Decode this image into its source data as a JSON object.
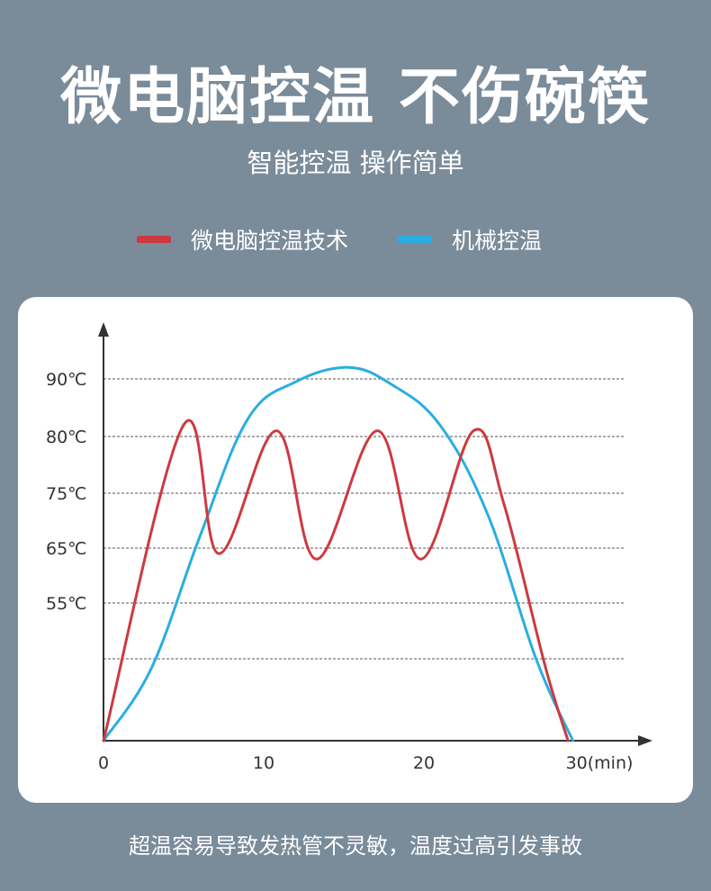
{
  "header": {
    "title": "微电脑控温 不伤碗筷",
    "subtitle": "智能控温 操作简单"
  },
  "footer": {
    "text": "超温容易导致发热管不灵敏，温度过高引发事故"
  },
  "colors": {
    "background": "#7a8b9a",
    "card": "#ffffff",
    "series_red": "#cc3a3f",
    "series_blue": "#2aaee0"
  },
  "chart_data": {
    "type": "line",
    "title": "",
    "xlabel": "",
    "ylabel": "",
    "legend_placement": "top",
    "grid": "horizontal-dashed",
    "x_ticks": [
      {
        "value": 0,
        "label": "0"
      },
      {
        "value": 10,
        "label": "10"
      },
      {
        "value": 20,
        "label": "20"
      },
      {
        "value": 30,
        "label": "30(min)"
      }
    ],
    "y_ticks": [
      {
        "value": 90,
        "label": "90℃"
      },
      {
        "value": 80,
        "label": "80℃"
      },
      {
        "value": 75,
        "label": "75℃"
      },
      {
        "value": 65,
        "label": "65℃"
      },
      {
        "value": 55,
        "label": "55℃"
      },
      {
        "value": 45,
        "label": ""
      }
    ],
    "series": [
      {
        "name": "微电脑控温技术",
        "color": "#cc3a3f",
        "points": [
          [
            0,
            0
          ],
          [
            5.0,
            82
          ],
          [
            7.2,
            64
          ],
          [
            10.8,
            81
          ],
          [
            13.3,
            63
          ],
          [
            17.1,
            81
          ],
          [
            19.8,
            63
          ],
          [
            23.1,
            81
          ],
          [
            25.0,
            73
          ],
          [
            27.6,
            40
          ],
          [
            29.0,
            0
          ]
        ]
      },
      {
        "name": "机械控温",
        "color": "#2aaee0",
        "points": [
          [
            0,
            0
          ],
          [
            3,
            40
          ],
          [
            6,
            67
          ],
          [
            9,
            83
          ],
          [
            12,
            89.5
          ],
          [
            15.3,
            92
          ],
          [
            18,
            89
          ],
          [
            21,
            82
          ],
          [
            24,
            71
          ],
          [
            27,
            45
          ],
          [
            29.3,
            0
          ]
        ]
      }
    ]
  }
}
